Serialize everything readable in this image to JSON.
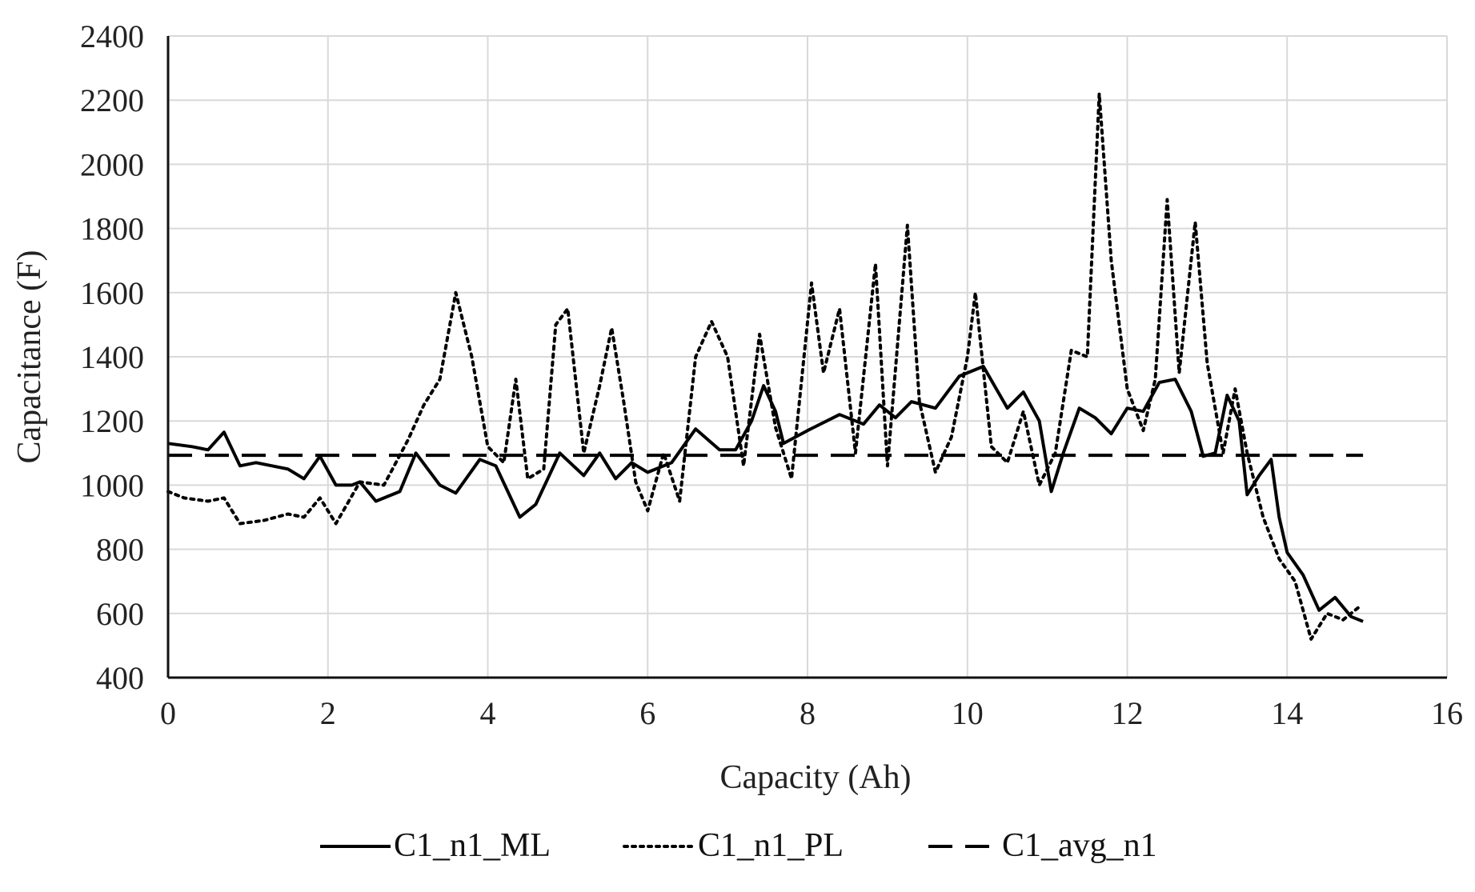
{
  "chart_data": {
    "type": "line",
    "title": "",
    "xlabel": "Capacity (Ah)",
    "ylabel": "Capacitance (F)",
    "xlim": [
      0,
      16
    ],
    "ylim": [
      400,
      2400
    ],
    "x_ticks": [
      0,
      2,
      4,
      6,
      8,
      10,
      12,
      14,
      16
    ],
    "y_ticks": [
      400,
      600,
      800,
      1000,
      1200,
      1400,
      1600,
      1800,
      2000,
      2200,
      2400
    ],
    "grid": true,
    "legend_position": "bottom",
    "series": [
      {
        "name": "C1_n1_ML",
        "style": "solid",
        "color": "#000000",
        "points": [
          [
            0.0,
            1130
          ],
          [
            0.3,
            1120
          ],
          [
            0.5,
            1110
          ],
          [
            0.7,
            1165
          ],
          [
            0.9,
            1060
          ],
          [
            1.1,
            1070
          ],
          [
            1.5,
            1050
          ],
          [
            1.7,
            1020
          ],
          [
            1.9,
            1090
          ],
          [
            2.1,
            1000
          ],
          [
            2.3,
            1000
          ],
          [
            2.4,
            1010
          ],
          [
            2.6,
            950
          ],
          [
            2.9,
            980
          ],
          [
            3.1,
            1100
          ],
          [
            3.4,
            1000
          ],
          [
            3.6,
            975
          ],
          [
            3.9,
            1080
          ],
          [
            4.1,
            1060
          ],
          [
            4.4,
            900
          ],
          [
            4.6,
            940
          ],
          [
            4.9,
            1100
          ],
          [
            5.2,
            1030
          ],
          [
            5.4,
            1100
          ],
          [
            5.6,
            1020
          ],
          [
            5.8,
            1070
          ],
          [
            6.0,
            1040
          ],
          [
            6.3,
            1070
          ],
          [
            6.6,
            1175
          ],
          [
            6.9,
            1110
          ],
          [
            7.1,
            1110
          ],
          [
            7.3,
            1200
          ],
          [
            7.45,
            1310
          ],
          [
            7.6,
            1230
          ],
          [
            7.7,
            1130
          ],
          [
            8.0,
            1170
          ],
          [
            8.4,
            1220
          ],
          [
            8.7,
            1190
          ],
          [
            8.9,
            1250
          ],
          [
            9.1,
            1210
          ],
          [
            9.3,
            1260
          ],
          [
            9.6,
            1240
          ],
          [
            9.9,
            1340
          ],
          [
            10.2,
            1370
          ],
          [
            10.5,
            1240
          ],
          [
            10.7,
            1290
          ],
          [
            10.9,
            1200
          ],
          [
            11.05,
            980
          ],
          [
            11.2,
            1100
          ],
          [
            11.4,
            1240
          ],
          [
            11.6,
            1210
          ],
          [
            11.8,
            1160
          ],
          [
            12.0,
            1240
          ],
          [
            12.2,
            1230
          ],
          [
            12.4,
            1320
          ],
          [
            12.6,
            1330
          ],
          [
            12.8,
            1230
          ],
          [
            12.95,
            1090
          ],
          [
            13.1,
            1100
          ],
          [
            13.25,
            1280
          ],
          [
            13.4,
            1200
          ],
          [
            13.5,
            970
          ],
          [
            13.65,
            1030
          ],
          [
            13.8,
            1080
          ],
          [
            13.9,
            900
          ],
          [
            14.0,
            790
          ],
          [
            14.2,
            720
          ],
          [
            14.4,
            610
          ],
          [
            14.6,
            650
          ],
          [
            14.8,
            590
          ],
          [
            14.95,
            575
          ]
        ]
      },
      {
        "name": "C1_n1_PL",
        "style": "dotted",
        "color": "#000000",
        "points": [
          [
            0.0,
            980
          ],
          [
            0.2,
            960
          ],
          [
            0.5,
            950
          ],
          [
            0.7,
            960
          ],
          [
            0.9,
            880
          ],
          [
            1.2,
            890
          ],
          [
            1.5,
            910
          ],
          [
            1.7,
            900
          ],
          [
            1.9,
            960
          ],
          [
            2.1,
            880
          ],
          [
            2.4,
            1010
          ],
          [
            2.7,
            1000
          ],
          [
            3.0,
            1140
          ],
          [
            3.2,
            1250
          ],
          [
            3.4,
            1330
          ],
          [
            3.6,
            1600
          ],
          [
            3.8,
            1400
          ],
          [
            4.0,
            1120
          ],
          [
            4.2,
            1070
          ],
          [
            4.35,
            1330
          ],
          [
            4.5,
            1020
          ],
          [
            4.7,
            1050
          ],
          [
            4.85,
            1500
          ],
          [
            5.0,
            1550
          ],
          [
            5.2,
            1100
          ],
          [
            5.4,
            1310
          ],
          [
            5.55,
            1490
          ],
          [
            5.7,
            1260
          ],
          [
            5.85,
            1010
          ],
          [
            6.0,
            920
          ],
          [
            6.2,
            1100
          ],
          [
            6.4,
            950
          ],
          [
            6.6,
            1400
          ],
          [
            6.8,
            1510
          ],
          [
            7.0,
            1400
          ],
          [
            7.2,
            1060
          ],
          [
            7.4,
            1470
          ],
          [
            7.6,
            1180
          ],
          [
            7.8,
            1020
          ],
          [
            8.05,
            1630
          ],
          [
            8.2,
            1350
          ],
          [
            8.4,
            1550
          ],
          [
            8.6,
            1100
          ],
          [
            8.85,
            1690
          ],
          [
            9.0,
            1060
          ],
          [
            9.25,
            1810
          ],
          [
            9.4,
            1260
          ],
          [
            9.6,
            1040
          ],
          [
            9.8,
            1150
          ],
          [
            10.0,
            1400
          ],
          [
            10.1,
            1600
          ],
          [
            10.3,
            1120
          ],
          [
            10.5,
            1070
          ],
          [
            10.7,
            1230
          ],
          [
            10.9,
            1000
          ],
          [
            11.1,
            1100
          ],
          [
            11.3,
            1420
          ],
          [
            11.5,
            1400
          ],
          [
            11.65,
            2220
          ],
          [
            11.8,
            1700
          ],
          [
            12.0,
            1300
          ],
          [
            12.2,
            1170
          ],
          [
            12.35,
            1330
          ],
          [
            12.5,
            1890
          ],
          [
            12.65,
            1350
          ],
          [
            12.85,
            1820
          ],
          [
            13.0,
            1380
          ],
          [
            13.2,
            1100
          ],
          [
            13.35,
            1300
          ],
          [
            13.5,
            1100
          ],
          [
            13.7,
            900
          ],
          [
            13.9,
            770
          ],
          [
            14.1,
            700
          ],
          [
            14.3,
            520
          ],
          [
            14.5,
            600
          ],
          [
            14.7,
            580
          ],
          [
            14.9,
            620
          ]
        ]
      },
      {
        "name": "C1_avg_n1",
        "style": "dashed",
        "color": "#000000",
        "points": [
          [
            0.0,
            1093
          ],
          [
            14.95,
            1093
          ]
        ]
      }
    ]
  }
}
